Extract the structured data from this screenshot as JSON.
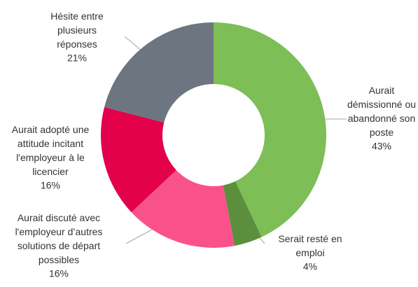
{
  "chart_data": {
    "type": "donut",
    "categories": [
      "Aurait\ndémissionné ou\nabandonné son\nposte",
      "Serait resté en\nemploi",
      "Aurait discuté avec\nl'employeur d’autres\nsolutions de départ\npossibles",
      "Aurait adopté une\nattitude incitant\nl'employeur à le\nlicencier",
      "Hésite entre\nplusieurs\nréponses"
    ],
    "values": [
      43,
      4,
      16,
      16,
      21
    ],
    "value_labels": [
      "43%",
      "4%",
      "16%",
      "16%",
      "21%"
    ],
    "colors": [
      "#7dbe57",
      "#5b8f3b",
      "#f9528a",
      "#e2014a",
      "#6d7680"
    ]
  }
}
